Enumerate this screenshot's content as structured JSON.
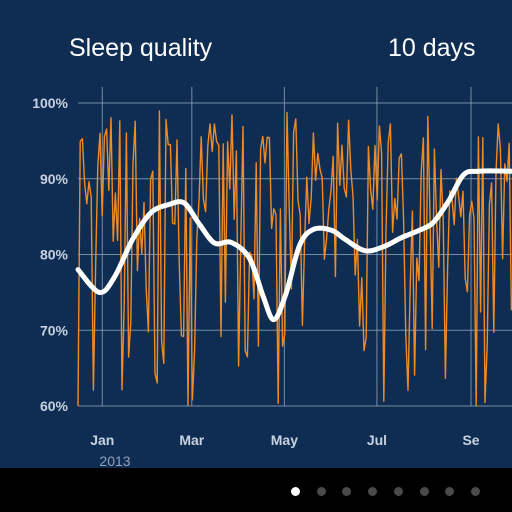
{
  "header": {
    "title": "Sleep quality",
    "period": "10 days"
  },
  "colors": {
    "background": "#0f2d52",
    "raw_series": "#f08a24",
    "smoothed_series": "#ffffff",
    "grid": "#8fa3bc",
    "tick_label": "#c7d2e0",
    "year_label": "#8fa0b6",
    "dot_active": "#ffffff",
    "dot_inactive": "#4a4a4a"
  },
  "pager": {
    "page_count": 8,
    "active_index": 0
  },
  "chart_data": {
    "type": "line",
    "title": "Sleep quality",
    "y_unit": "%",
    "ylim": [
      60,
      100
    ],
    "yticks": [
      60,
      70,
      80,
      90,
      100
    ],
    "ytick_labels": [
      "60%",
      "70%",
      "80%",
      "90%",
      "100%"
    ],
    "xlim": [
      "2012-12-16",
      "2013-09-28"
    ],
    "xticks": [
      {
        "date": "2013-01-01",
        "label": "Jan"
      },
      {
        "date": "2013-03-01",
        "label": "Mar"
      },
      {
        "date": "2013-05-01",
        "label": "May"
      },
      {
        "date": "2013-07-01",
        "label": "Jul"
      },
      {
        "date": "2013-09-01",
        "label": "Se"
      }
    ],
    "year_label": "2013",
    "grid": true,
    "series": [
      {
        "values_by_date": [
          [
            "2012-12-16",
            78
          ],
          [
            "2012-12-30",
            75
          ],
          [
            "2013-01-09",
            77
          ],
          [
            "2013-01-21",
            82
          ],
          [
            "2013-02-02",
            85.5
          ],
          [
            "2013-02-14",
            86.6
          ],
          [
            "2013-02-24",
            86.8
          ],
          [
            "2013-03-06",
            84
          ],
          [
            "2013-03-16",
            81.5
          ],
          [
            "2013-03-27",
            81.6
          ],
          [
            "2013-04-08",
            79.5
          ],
          [
            "2013-04-17",
            74.5
          ],
          [
            "2013-04-24",
            71.4
          ],
          [
            "2013-05-02",
            74.8
          ],
          [
            "2013-05-11",
            81.2
          ],
          [
            "2013-05-20",
            83.3
          ],
          [
            "2013-06-01",
            83.2
          ],
          [
            "2013-06-10",
            82
          ],
          [
            "2013-06-23",
            80.5
          ],
          [
            "2013-07-05",
            81
          ],
          [
            "2013-07-17",
            82.2
          ],
          [
            "2013-07-29",
            83.2
          ],
          [
            "2013-08-07",
            84.2
          ],
          [
            "2013-08-17",
            87
          ],
          [
            "2013-08-27",
            90.5
          ],
          [
            "2013-09-06",
            91
          ],
          [
            "2013-09-28",
            91
          ]
        ]
      }
    ],
    "raw_series_range": [
      60,
      99
    ]
  }
}
